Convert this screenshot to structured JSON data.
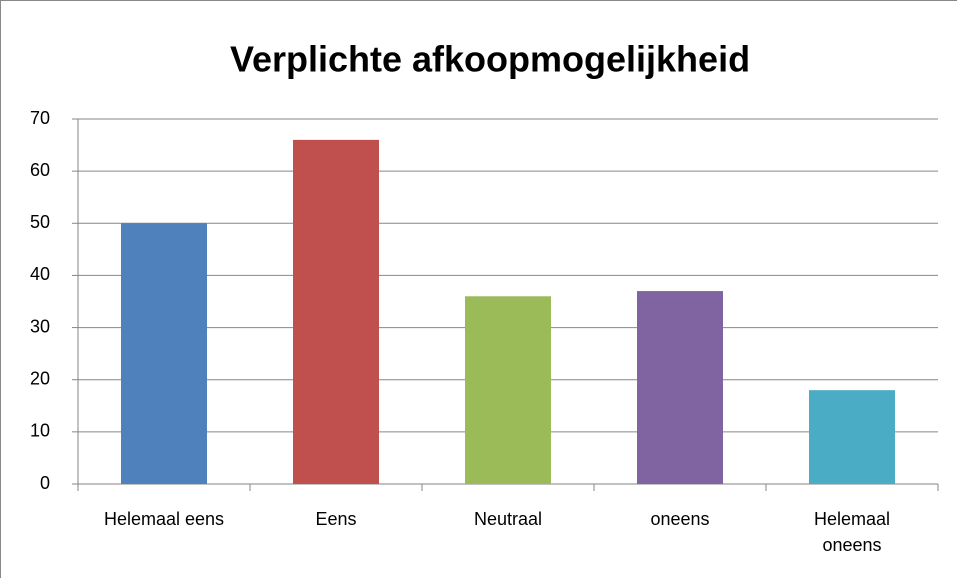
{
  "chart_data": {
    "type": "bar",
    "title": "Verplichte afkoopmogelijkheid",
    "categories": [
      "Helemaal eens",
      "Eens",
      "Neutraal",
      "oneens",
      "Helemaal oneens"
    ],
    "values": [
      50,
      66,
      36,
      37,
      18
    ],
    "colors": [
      "#4f81bd",
      "#c0504d",
      "#9bbb59",
      "#8064a2",
      "#4bacc6"
    ],
    "ylim": [
      0,
      70
    ],
    "yticks": [
      0,
      10,
      20,
      30,
      40,
      50,
      60,
      70
    ],
    "grid": true
  }
}
